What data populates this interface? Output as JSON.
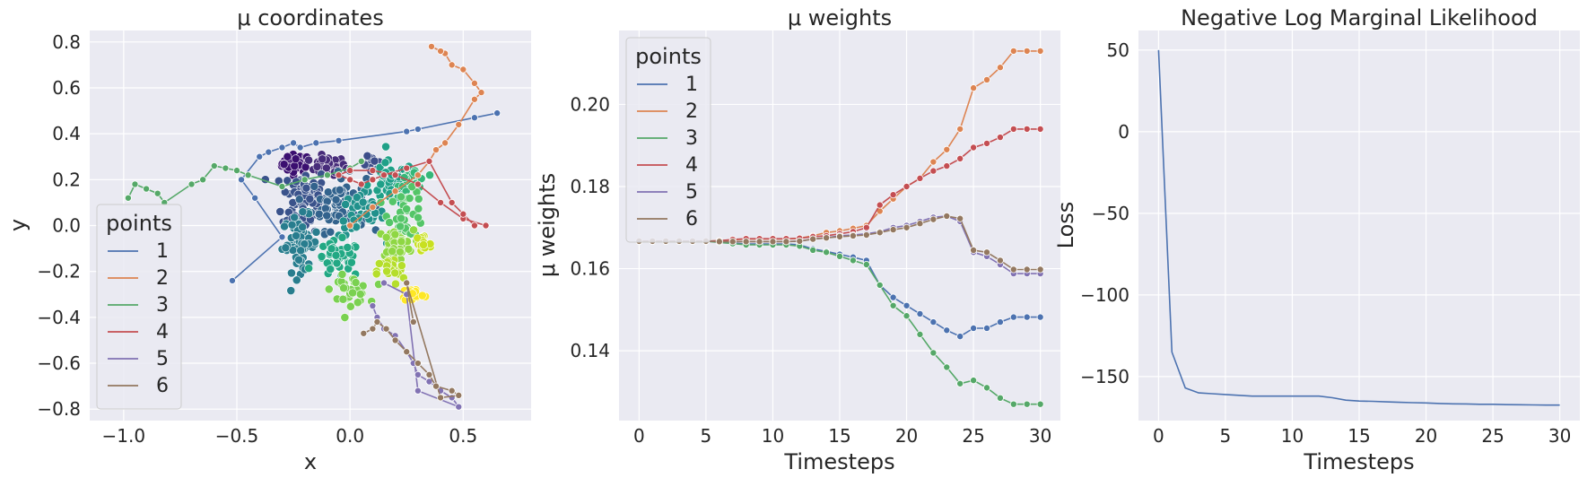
{
  "figure": {
    "background": "#ffffff",
    "axes_background": "#eaeaf2",
    "grid_color": "#ffffff",
    "palette": [
      "#4c72b0",
      "#dd8452",
      "#55a868",
      "#c44e52",
      "#8172b3",
      "#937860"
    ]
  },
  "chart_data": [
    {
      "id": "coords",
      "type": "scatter",
      "title": "μ coordinates",
      "xlabel": "x",
      "ylabel": "y",
      "xlim": [
        -1.15,
        0.8
      ],
      "ylim": [
        -0.85,
        0.85
      ],
      "xticks": [
        -1.0,
        -0.5,
        0.0,
        0.5
      ],
      "xtick_labels": [
        "−1.0",
        "−0.5",
        "0.0",
        "0.5"
      ],
      "yticks": [
        -0.8,
        -0.6,
        -0.4,
        -0.2,
        0.0,
        0.2,
        0.4,
        0.6,
        0.8
      ],
      "ytick_labels": [
        "−0.8",
        "−0.6",
        "−0.4",
        "−0.2",
        "0.0",
        "0.2",
        "0.4",
        "0.6",
        "0.8"
      ],
      "legend": {
        "title": "points",
        "location": "lower-left",
        "labels": [
          "1",
          "2",
          "3",
          "4",
          "5",
          "6"
        ]
      },
      "clusters": [
        {
          "cx": -0.24,
          "cy": 0.27,
          "sx": 0.03,
          "sy": 0.02,
          "n": 45,
          "color": "#3b0f70"
        },
        {
          "cx": -0.1,
          "cy": 0.26,
          "sx": 0.04,
          "sy": 0.02,
          "n": 35,
          "color": "#472c7a"
        },
        {
          "cx": 0.1,
          "cy": 0.26,
          "sx": 0.02,
          "sy": 0.02,
          "n": 20,
          "color": "#3d4e8a"
        },
        {
          "cx": -0.2,
          "cy": 0.12,
          "sx": 0.05,
          "sy": 0.07,
          "n": 80,
          "color": "#3a528b"
        },
        {
          "cx": -0.05,
          "cy": 0.1,
          "sx": 0.06,
          "sy": 0.06,
          "n": 70,
          "color": "#33638d"
        },
        {
          "cx": -0.22,
          "cy": -0.08,
          "sx": 0.04,
          "sy": 0.06,
          "n": 60,
          "color": "#287d8e"
        },
        {
          "cx": 0.05,
          "cy": 0.05,
          "sx": 0.05,
          "sy": 0.05,
          "n": 40,
          "color": "#21918c"
        },
        {
          "cx": 0.18,
          "cy": 0.18,
          "sx": 0.05,
          "sy": 0.05,
          "n": 50,
          "color": "#1fa088"
        },
        {
          "cx": -0.05,
          "cy": -0.15,
          "sx": 0.05,
          "sy": 0.04,
          "n": 40,
          "color": "#22a884"
        },
        {
          "cx": 0.28,
          "cy": 0.2,
          "sx": 0.03,
          "sy": 0.03,
          "n": 25,
          "color": "#35b779"
        },
        {
          "cx": 0.25,
          "cy": 0.05,
          "sx": 0.04,
          "sy": 0.05,
          "n": 40,
          "color": "#54c568"
        },
        {
          "cx": 0.0,
          "cy": -0.28,
          "sx": 0.04,
          "sy": 0.03,
          "n": 35,
          "color": "#7ad151"
        },
        {
          "cx": 0.2,
          "cy": -0.08,
          "sx": 0.04,
          "sy": 0.03,
          "n": 40,
          "color": "#8fd744"
        },
        {
          "cx": 0.18,
          "cy": -0.2,
          "sx": 0.03,
          "sy": 0.03,
          "n": 25,
          "color": "#b5de2b"
        },
        {
          "cx": 0.32,
          "cy": -0.08,
          "sx": 0.02,
          "sy": 0.03,
          "n": 20,
          "color": "#c8e020"
        },
        {
          "cx": 0.28,
          "cy": -0.3,
          "sx": 0.025,
          "sy": 0.015,
          "n": 25,
          "color": "#fde725"
        }
      ],
      "series": [
        {
          "name": "1",
          "points": [
            [
              -0.52,
              -0.24
            ],
            [
              -0.3,
              -0.05
            ],
            [
              -0.42,
              0.12
            ],
            [
              -0.48,
              0.2
            ],
            [
              -0.4,
              0.3
            ],
            [
              -0.36,
              0.32
            ],
            [
              -0.3,
              0.34
            ],
            [
              -0.25,
              0.36
            ],
            [
              -0.22,
              0.34
            ],
            [
              -0.15,
              0.36
            ],
            [
              -0.05,
              0.37
            ],
            [
              0.25,
              0.41
            ],
            [
              0.3,
              0.42
            ],
            [
              0.55,
              0.47
            ],
            [
              0.65,
              0.49
            ]
          ]
        },
        {
          "name": "2",
          "points": [
            [
              0.0,
              0.0
            ],
            [
              0.1,
              0.08
            ],
            [
              0.2,
              0.15
            ],
            [
              0.3,
              0.22
            ],
            [
              0.35,
              0.28
            ],
            [
              0.38,
              0.33
            ],
            [
              0.42,
              0.36
            ],
            [
              0.48,
              0.44
            ],
            [
              0.55,
              0.55
            ],
            [
              0.58,
              0.58
            ],
            [
              0.55,
              0.62
            ],
            [
              0.5,
              0.68
            ],
            [
              0.45,
              0.7
            ],
            [
              0.42,
              0.75
            ],
            [
              0.4,
              0.76
            ],
            [
              0.36,
              0.78
            ]
          ]
        },
        {
          "name": "3",
          "points": [
            [
              -0.98,
              0.12
            ],
            [
              -0.95,
              0.18
            ],
            [
              -0.9,
              0.16
            ],
            [
              -0.85,
              0.14
            ],
            [
              -0.82,
              0.1
            ],
            [
              -0.7,
              0.18
            ],
            [
              -0.65,
              0.2
            ],
            [
              -0.6,
              0.26
            ],
            [
              -0.55,
              0.25
            ],
            [
              -0.5,
              0.24
            ],
            [
              -0.45,
              0.22
            ],
            [
              -0.3,
              0.17
            ],
            [
              -0.2,
              0.2
            ],
            [
              -0.1,
              0.22
            ],
            [
              0.0,
              0.25
            ],
            [
              0.05,
              0.28
            ]
          ]
        },
        {
          "name": "4",
          "points": [
            [
              0.6,
              0.0
            ],
            [
              0.5,
              0.03
            ],
            [
              0.4,
              0.1
            ],
            [
              0.3,
              0.18
            ],
            [
              0.2,
              0.22
            ],
            [
              0.1,
              0.24
            ],
            [
              0.0,
              0.24
            ],
            [
              -0.05,
              0.22
            ],
            [
              0.0,
              0.2
            ],
            [
              0.05,
              0.18
            ],
            [
              0.1,
              0.2
            ],
            [
              0.15,
              0.22
            ],
            [
              0.25,
              0.25
            ],
            [
              0.35,
              0.28
            ],
            [
              0.45,
              0.1
            ],
            [
              0.5,
              0.05
            ],
            [
              0.55,
              0.0
            ]
          ]
        },
        {
          "name": "5",
          "points": [
            [
              0.1,
              -0.35
            ],
            [
              0.12,
              -0.4
            ],
            [
              0.15,
              -0.45
            ],
            [
              0.2,
              -0.48
            ],
            [
              0.25,
              -0.55
            ],
            [
              0.28,
              -0.6
            ],
            [
              0.3,
              -0.65
            ],
            [
              0.35,
              -0.68
            ],
            [
              0.4,
              -0.72
            ],
            [
              0.45,
              -0.75
            ],
            [
              0.48,
              -0.79
            ],
            [
              0.3,
              -0.72
            ],
            [
              0.25,
              -0.3
            ],
            [
              0.15,
              -0.25
            ]
          ]
        },
        {
          "name": "6",
          "points": [
            [
              0.06,
              -0.47
            ],
            [
              0.1,
              -0.45
            ],
            [
              0.12,
              -0.42
            ],
            [
              0.16,
              -0.45
            ],
            [
              0.2,
              -0.5
            ],
            [
              0.25,
              -0.55
            ],
            [
              0.3,
              -0.6
            ],
            [
              0.35,
              -0.65
            ],
            [
              0.38,
              -0.7
            ],
            [
              0.45,
              -0.72
            ],
            [
              0.48,
              -0.74
            ],
            [
              0.4,
              -0.75
            ],
            [
              0.25,
              -0.25
            ],
            [
              0.28,
              -0.42
            ]
          ]
        }
      ]
    },
    {
      "id": "weights",
      "type": "line",
      "title": "μ weights",
      "xlabel": "Timesteps",
      "ylabel": "μ weights",
      "xlim": [
        -1.5,
        31.5
      ],
      "ylim": [
        0.123,
        0.218
      ],
      "xticks": [
        0,
        5,
        10,
        15,
        20,
        25,
        30
      ],
      "xtick_labels": [
        "0",
        "5",
        "10",
        "15",
        "20",
        "25",
        "30"
      ],
      "yticks": [
        0.14,
        0.16,
        0.18,
        0.2
      ],
      "ytick_labels": [
        "0.14",
        "0.16",
        "0.18",
        "0.20"
      ],
      "legend": {
        "title": "points",
        "location": "top-left",
        "labels": [
          "1",
          "2",
          "3",
          "4",
          "5",
          "6"
        ]
      },
      "x": [
        0,
        1,
        2,
        3,
        4,
        5,
        6,
        7,
        8,
        9,
        10,
        11,
        12,
        13,
        14,
        15,
        16,
        17,
        18,
        19,
        20,
        21,
        22,
        23,
        24,
        25,
        26,
        27,
        28,
        29,
        30
      ],
      "series": [
        {
          "name": "1",
          "values": [
            0.1667,
            0.1667,
            0.1667,
            0.1667,
            0.1667,
            0.1667,
            0.1665,
            0.1662,
            0.166,
            0.166,
            0.166,
            0.166,
            0.1658,
            0.1648,
            0.1642,
            0.1635,
            0.1628,
            0.162,
            0.156,
            0.153,
            0.151,
            0.149,
            0.147,
            0.145,
            0.1435,
            0.1455,
            0.1455,
            0.147,
            0.1482,
            0.1482,
            0.1482
          ]
        },
        {
          "name": "2",
          "values": [
            0.1667,
            0.1667,
            0.1667,
            0.1667,
            0.1667,
            0.1667,
            0.1668,
            0.167,
            0.1672,
            0.1672,
            0.1672,
            0.1672,
            0.1674,
            0.168,
            0.1688,
            0.1692,
            0.1698,
            0.1705,
            0.174,
            0.177,
            0.18,
            0.182,
            0.186,
            0.189,
            0.194,
            0.204,
            0.206,
            0.209,
            0.213,
            0.213,
            0.213
          ]
        },
        {
          "name": "3",
          "values": [
            0.1667,
            0.1667,
            0.1667,
            0.1667,
            0.1667,
            0.1667,
            0.1664,
            0.1661,
            0.1658,
            0.1658,
            0.1658,
            0.1658,
            0.1655,
            0.1645,
            0.164,
            0.163,
            0.162,
            0.161,
            0.156,
            0.151,
            0.1485,
            0.144,
            0.1395,
            0.136,
            0.132,
            0.1328,
            0.131,
            0.1285,
            0.127,
            0.127,
            0.127
          ]
        },
        {
          "name": "4",
          "values": [
            0.1667,
            0.1667,
            0.1667,
            0.1667,
            0.1667,
            0.1667,
            0.1668,
            0.1671,
            0.1673,
            0.1673,
            0.1673,
            0.1673,
            0.1674,
            0.1678,
            0.168,
            0.1685,
            0.169,
            0.17,
            0.1755,
            0.178,
            0.18,
            0.182,
            0.1838,
            0.185,
            0.1868,
            0.1895,
            0.1905,
            0.192,
            0.194,
            0.194,
            0.194
          ]
        },
        {
          "name": "5",
          "values": [
            0.1667,
            0.1667,
            0.1667,
            0.1667,
            0.1667,
            0.1667,
            0.1666,
            0.1666,
            0.1666,
            0.1666,
            0.1666,
            0.1666,
            0.1667,
            0.1672,
            0.1675,
            0.168,
            0.1682,
            0.1685,
            0.169,
            0.17,
            0.1705,
            0.1715,
            0.1725,
            0.1728,
            0.1715,
            0.164,
            0.163,
            0.161,
            0.1588,
            0.1588,
            0.1588
          ]
        },
        {
          "name": "6",
          "values": [
            0.1667,
            0.1667,
            0.1667,
            0.1667,
            0.1667,
            0.1667,
            0.1666,
            0.1666,
            0.1666,
            0.1666,
            0.1666,
            0.1666,
            0.1667,
            0.1672,
            0.1675,
            0.1678,
            0.168,
            0.1682,
            0.1688,
            0.1695,
            0.17,
            0.171,
            0.172,
            0.1728,
            0.1722,
            0.1645,
            0.164,
            0.162,
            0.1598,
            0.1598,
            0.1598
          ]
        }
      ]
    },
    {
      "id": "loss",
      "type": "line",
      "title": "Negative Log Marginal Likelihood",
      "xlabel": "Timesteps",
      "ylabel": "Loss",
      "xlim": [
        -1.5,
        31.5
      ],
      "ylim": [
        -177,
        62
      ],
      "xticks": [
        0,
        5,
        10,
        15,
        20,
        25,
        30
      ],
      "xtick_labels": [
        "0",
        "5",
        "10",
        "15",
        "20",
        "25",
        "30"
      ],
      "yticks": [
        -150,
        -100,
        -50,
        0,
        50
      ],
      "ytick_labels": [
        "−150",
        "−100",
        "−50",
        "0",
        "50"
      ],
      "x": [
        0,
        1,
        2,
        3,
        4,
        5,
        6,
        7,
        8,
        9,
        10,
        11,
        12,
        13,
        14,
        15,
        16,
        17,
        18,
        19,
        20,
        21,
        22,
        23,
        24,
        25,
        26,
        27,
        28,
        29,
        30
      ],
      "series": [
        {
          "name": "loss",
          "values": [
            50,
            -135,
            -157,
            -160,
            -160.5,
            -161,
            -161.5,
            -162,
            -162,
            -162,
            -162,
            -162,
            -162,
            -163,
            -164.5,
            -165,
            -165.2,
            -165.5,
            -165.8,
            -166,
            -166.2,
            -166.5,
            -166.7,
            -166.8,
            -167,
            -167,
            -167.2,
            -167.3,
            -167.4,
            -167.5,
            -167.5
          ]
        }
      ]
    }
  ]
}
